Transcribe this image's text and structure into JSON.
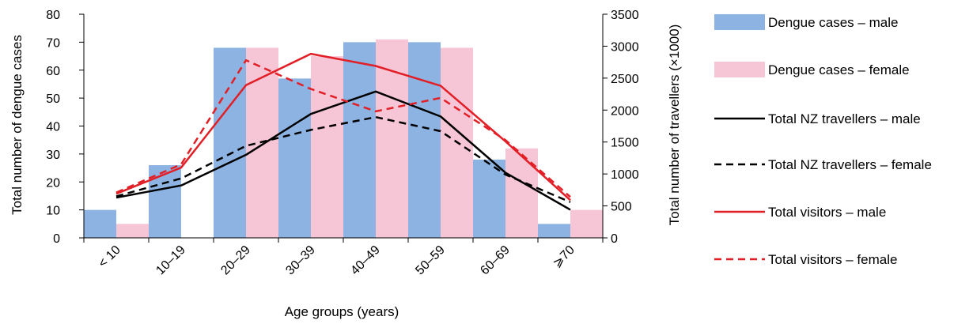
{
  "chart_data": {
    "type": "bar",
    "title": "",
    "xlabel": "Age groups (years)",
    "ylabel": "Total number of dengue cases",
    "y2label": "Total number of travellers (×1000)",
    "categories": [
      "< 10",
      "10–19",
      "20–29",
      "30–39",
      "40–49",
      "50–59",
      "60–69",
      "⩾70"
    ],
    "ylim": [
      0,
      80
    ],
    "yticks": [
      0,
      10,
      20,
      30,
      40,
      50,
      60,
      70,
      80
    ],
    "y2lim": [
      0,
      3500
    ],
    "y2ticks": [
      0,
      500,
      1000,
      1500,
      2000,
      2500,
      3000,
      3500
    ],
    "grid": false,
    "legend_position": "right",
    "bar_series": [
      {
        "name": "Dengue cases – male",
        "color": "#8db3e2",
        "values": [
          10,
          26,
          68,
          57,
          70,
          70,
          28,
          5
        ]
      },
      {
        "name": "Dengue cases – female",
        "color": "#f7c6d6",
        "values": [
          5,
          0,
          68,
          65,
          71,
          68,
          32,
          10
        ]
      }
    ],
    "line_series": [
      {
        "name": "Total NZ travellers – male",
        "color": "#000000",
        "dash": "solid",
        "values": [
          630,
          820,
          1300,
          1940,
          2290,
          1900,
          1020,
          440
        ]
      },
      {
        "name": "Total NZ travellers – female",
        "color": "#000000",
        "dash": "dashed",
        "values": [
          650,
          930,
          1440,
          1690,
          1890,
          1670,
          990,
          560
        ]
      },
      {
        "name": "Total visitors – male",
        "color": "#e21f26",
        "dash": "solid",
        "values": [
          690,
          1100,
          2390,
          2880,
          2690,
          2380,
          1510,
          590
        ]
      },
      {
        "name": "Total visitors – female",
        "color": "#e21f26",
        "dash": "dashed",
        "values": [
          710,
          1150,
          2780,
          2330,
          1980,
          2190,
          1530,
          640
        ]
      }
    ]
  }
}
